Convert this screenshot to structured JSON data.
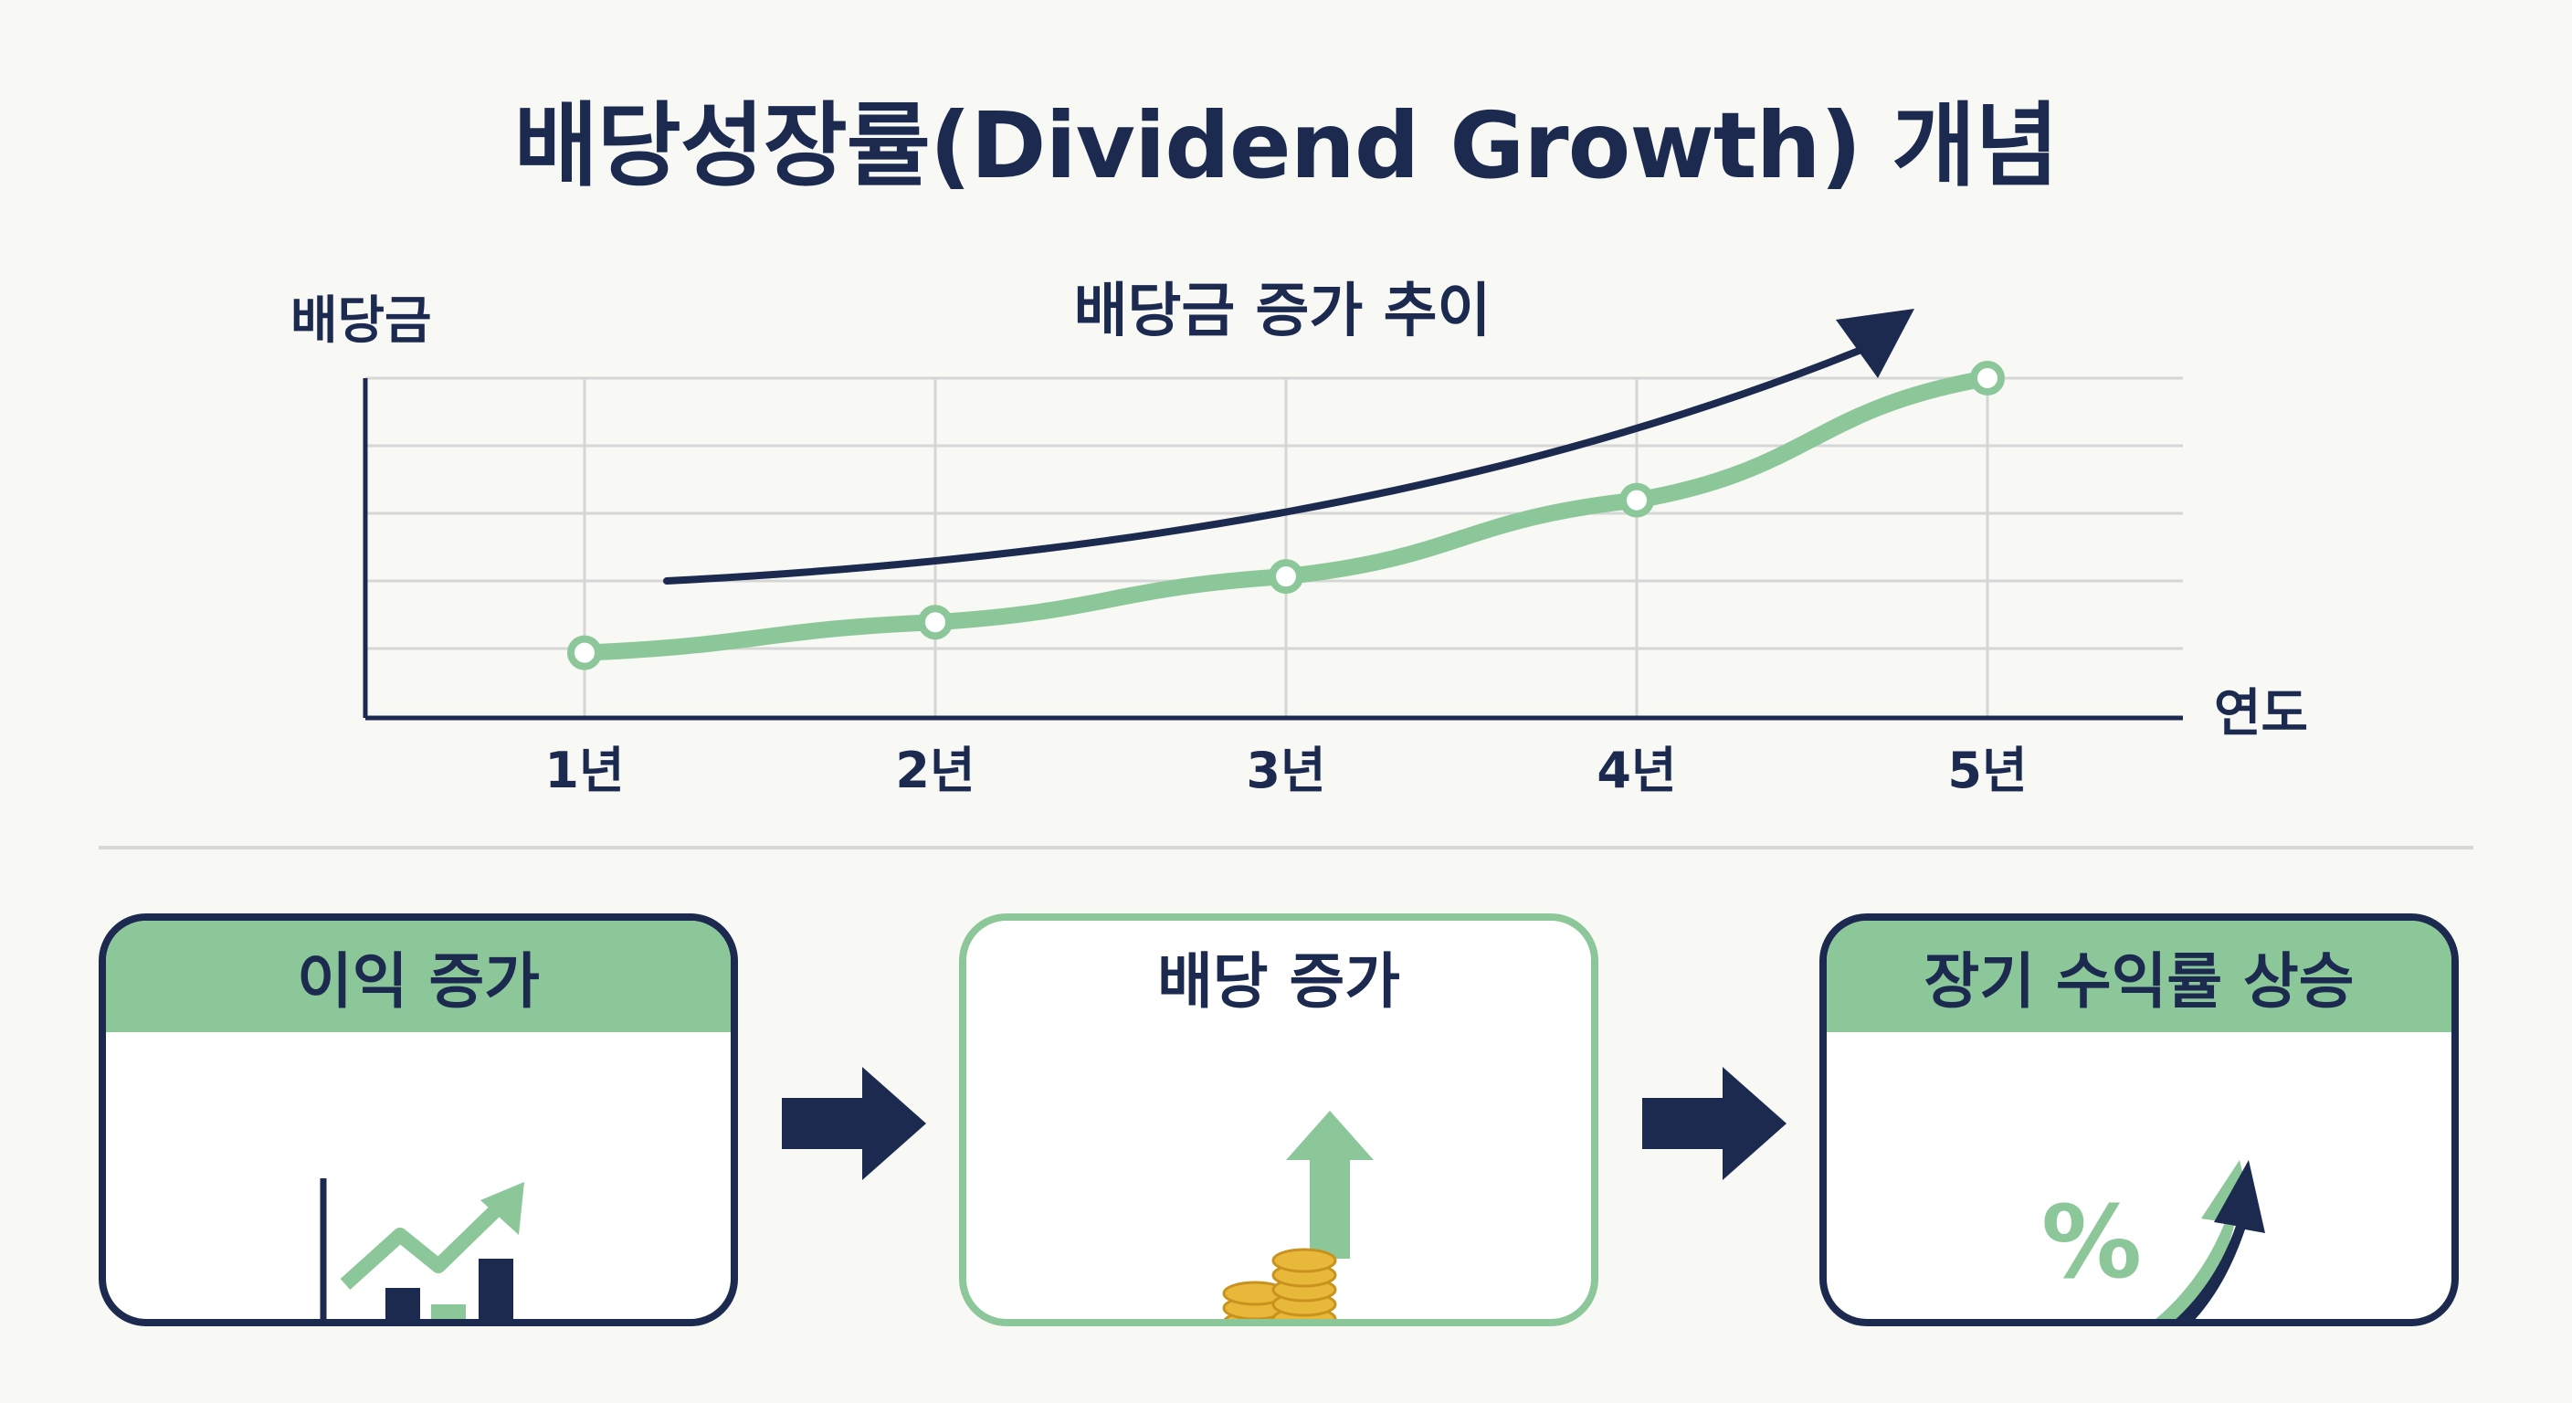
{
  "title": "배당성장률(Dividend Growth) 개념",
  "chart_data": {
    "type": "line",
    "title": "배당금 증가 추이",
    "ylabel": "배당금",
    "xlabel": "연도",
    "categories": [
      "1년",
      "2년",
      "3년",
      "4년",
      "5년"
    ],
    "series": [
      {
        "name": "",
        "values": [
          0.5,
          1.0,
          1.75,
          3.0,
          5.0
        ],
        "color": "#8cc79a"
      }
    ],
    "ylim": [
      0,
      5
    ],
    "grid": true,
    "trend_arrow": true,
    "colors": {
      "line": "#8cc79a",
      "trend": "#1b2a4e",
      "grid": "#d6d6d6",
      "axis": "#1b2a4e"
    }
  },
  "flow": {
    "steps": [
      {
        "label": "이익 증가",
        "icon": "bar-chart-growth-icon"
      },
      {
        "label": "배당 증가",
        "icon": "coins-in-hand-icon"
      },
      {
        "label": "장기 수익률 상승",
        "icon": "percent-up-arrow-icon"
      }
    ],
    "arrow_icon": "right-arrow-icon",
    "colors": {
      "navy": "#1b2a4e",
      "green": "#8cc79a",
      "gold": "#e8b83a"
    }
  }
}
